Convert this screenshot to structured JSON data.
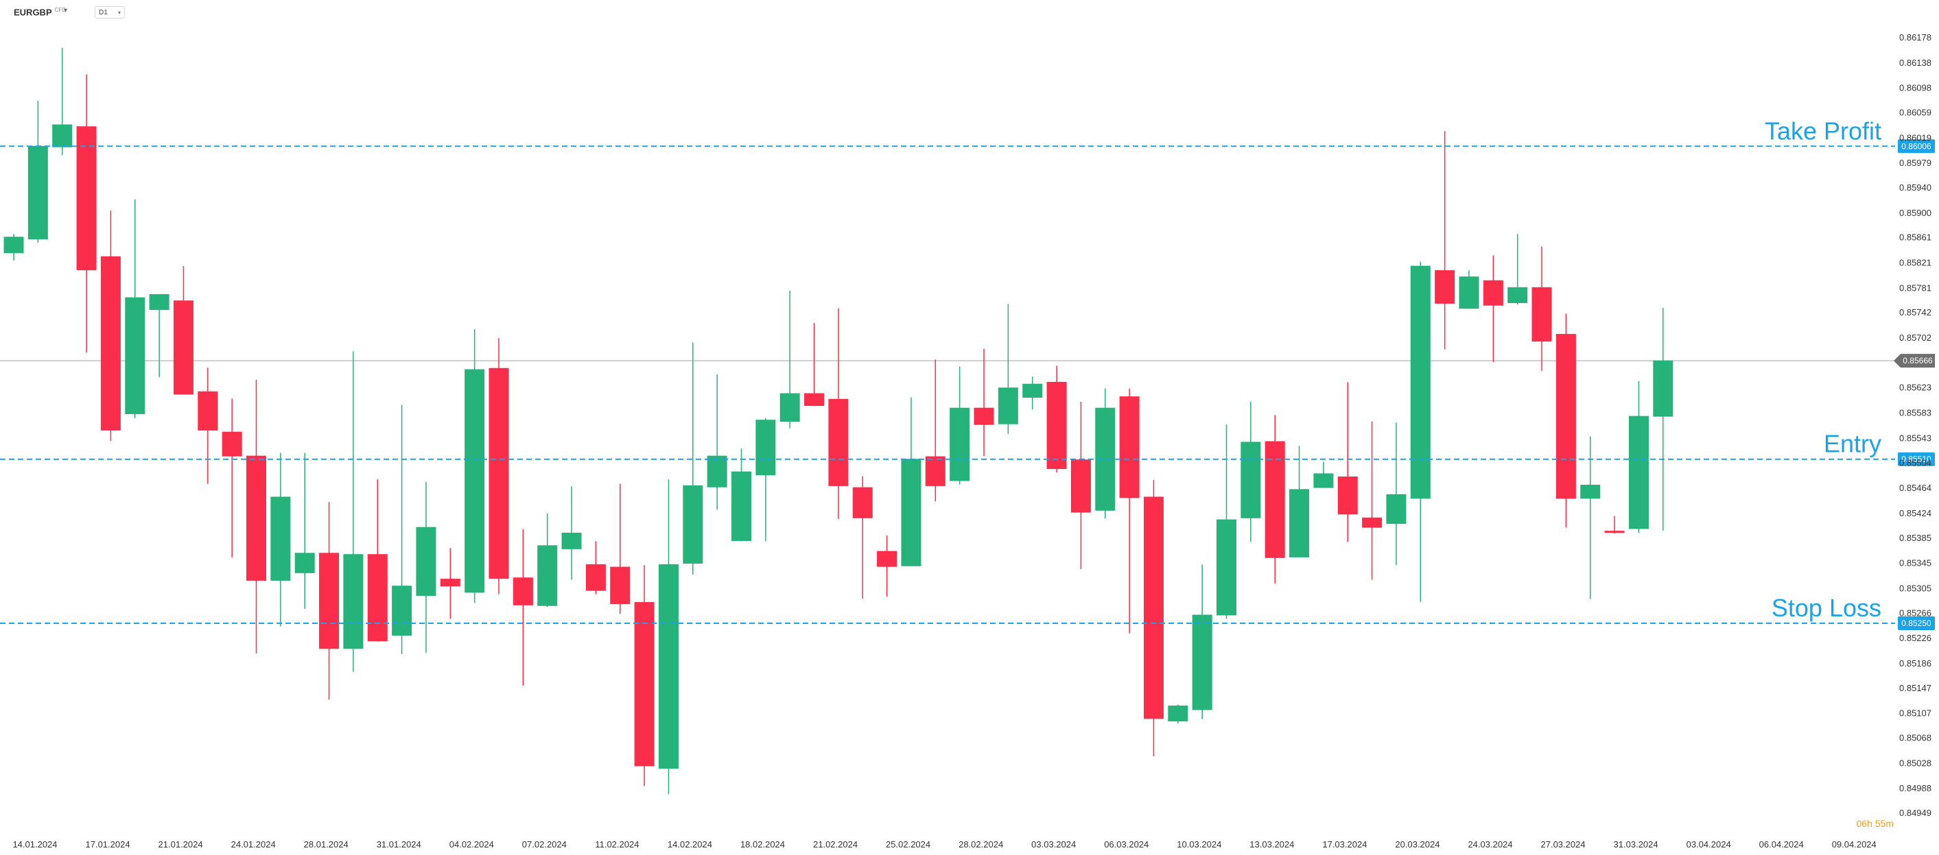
{
  "toolbar": {
    "symbol": "EURGBP",
    "symbol_suffix": "CFD",
    "timeframe": "D1"
  },
  "chart_data": {
    "type": "candlestick",
    "timeframe": "D1",
    "ylim": [
      0.84949,
      0.86178
    ],
    "y_ticks": [
      "0.86178",
      "0.86138",
      "0.86098",
      "0.86059",
      "0.86019",
      "0.85979",
      "0.85940",
      "0.85900",
      "0.85861",
      "0.85821",
      "0.85781",
      "0.85742",
      "0.85702",
      "0.85623",
      "0.85583",
      "0.85543",
      "0.85504",
      "0.85464",
      "0.85424",
      "0.85385",
      "0.85345",
      "0.85305",
      "0.85266",
      "0.85226",
      "0.85186",
      "0.85147",
      "0.85107",
      "0.85068",
      "0.85028",
      "0.84988",
      "0.84949"
    ],
    "x_labels": [
      {
        "i": 0,
        "t": "14.01.2024"
      },
      {
        "i": 3,
        "t": "17.01.2024"
      },
      {
        "i": 6,
        "t": "21.01.2024"
      },
      {
        "i": 9,
        "t": "24.01.2024"
      },
      {
        "i": 12,
        "t": "28.01.2024"
      },
      {
        "i": 15,
        "t": "31.01.2024"
      },
      {
        "i": 18,
        "t": "04.02.2024"
      },
      {
        "i": 21,
        "t": "07.02.2024"
      },
      {
        "i": 24,
        "t": "11.02.2024"
      },
      {
        "i": 27,
        "t": "14.02.2024"
      },
      {
        "i": 30,
        "t": "18.02.2024"
      },
      {
        "i": 33,
        "t": "21.02.2024"
      },
      {
        "i": 36,
        "t": "25.02.2024"
      },
      {
        "i": 39,
        "t": "28.02.2024"
      },
      {
        "i": 42,
        "t": "03.03.2024"
      },
      {
        "i": 45,
        "t": "06.03.2024"
      },
      {
        "i": 48,
        "t": "10.03.2024"
      },
      {
        "i": 51,
        "t": "13.03.2024"
      },
      {
        "i": 54,
        "t": "17.03.2024"
      },
      {
        "i": 57,
        "t": "20.03.2024"
      },
      {
        "i": 60,
        "t": "24.03.2024"
      },
      {
        "i": 63,
        "t": "27.03.2024"
      },
      {
        "i": 66,
        "t": "31.03.2024"
      },
      {
        "i": 69,
        "t": "03.04.2024"
      },
      {
        "i": 72,
        "t": "06.04.2024"
      },
      {
        "i": 75,
        "t": "09.04.2024"
      }
    ],
    "candles": [
      {
        "o": 0.85837,
        "h": 0.85867,
        "l": 0.85825,
        "c": 0.85862
      },
      {
        "o": 0.85859,
        "h": 0.86078,
        "l": 0.85853,
        "c": 0.86006
      },
      {
        "o": 0.86005,
        "h": 0.86162,
        "l": 0.85992,
        "c": 0.8604
      },
      {
        "o": 0.86037,
        "h": 0.8612,
        "l": 0.85679,
        "c": 0.8581
      },
      {
        "o": 0.85831,
        "h": 0.85904,
        "l": 0.85539,
        "c": 0.85556
      },
      {
        "o": 0.85582,
        "h": 0.85922,
        "l": 0.85575,
        "c": 0.85766
      },
      {
        "o": 0.85747,
        "h": 0.85768,
        "l": 0.8564,
        "c": 0.85771
      },
      {
        "o": 0.85761,
        "h": 0.85816,
        "l": 0.85616,
        "c": 0.85613
      },
      {
        "o": 0.85617,
        "h": 0.85655,
        "l": 0.85471,
        "c": 0.85556
      },
      {
        "o": 0.85553,
        "h": 0.85606,
        "l": 0.85354,
        "c": 0.85515
      },
      {
        "o": 0.85515,
        "h": 0.85636,
        "l": 0.85202,
        "c": 0.85318
      },
      {
        "o": 0.85318,
        "h": 0.8552,
        "l": 0.85245,
        "c": 0.8545
      },
      {
        "o": 0.8533,
        "h": 0.8552,
        "l": 0.85273,
        "c": 0.85361
      },
      {
        "o": 0.85361,
        "h": 0.85442,
        "l": 0.85129,
        "c": 0.8521
      },
      {
        "o": 0.8521,
        "h": 0.85681,
        "l": 0.85173,
        "c": 0.85359
      },
      {
        "o": 0.85359,
        "h": 0.85478,
        "l": 0.85221,
        "c": 0.85222
      },
      {
        "o": 0.85231,
        "h": 0.85596,
        "l": 0.85201,
        "c": 0.85309
      },
      {
        "o": 0.85294,
        "h": 0.85474,
        "l": 0.85203,
        "c": 0.85402
      },
      {
        "o": 0.8532,
        "h": 0.85369,
        "l": 0.85257,
        "c": 0.85309
      },
      {
        "o": 0.85299,
        "h": 0.85716,
        "l": 0.85282,
        "c": 0.85652
      },
      {
        "o": 0.85654,
        "h": 0.85702,
        "l": 0.85296,
        "c": 0.85321
      },
      {
        "o": 0.85322,
        "h": 0.85399,
        "l": 0.85151,
        "c": 0.85279
      },
      {
        "o": 0.85278,
        "h": 0.85424,
        "l": 0.85276,
        "c": 0.85373
      },
      {
        "o": 0.85368,
        "h": 0.85467,
        "l": 0.85319,
        "c": 0.85393
      },
      {
        "o": 0.85343,
        "h": 0.8538,
        "l": 0.85296,
        "c": 0.85302
      },
      {
        "o": 0.85339,
        "h": 0.85471,
        "l": 0.85265,
        "c": 0.85281
      },
      {
        "o": 0.85283,
        "h": 0.85342,
        "l": 0.84992,
        "c": 0.85024
      },
      {
        "o": 0.8502,
        "h": 0.85478,
        "l": 0.84979,
        "c": 0.85343
      },
      {
        "o": 0.85345,
        "h": 0.85695,
        "l": 0.85327,
        "c": 0.85468
      },
      {
        "o": 0.85466,
        "h": 0.85644,
        "l": 0.8543,
        "c": 0.85515
      },
      {
        "o": 0.85381,
        "h": 0.85527,
        "l": 0.8538,
        "c": 0.8549
      },
      {
        "o": 0.85485,
        "h": 0.85575,
        "l": 0.8538,
        "c": 0.85572
      },
      {
        "o": 0.8557,
        "h": 0.85777,
        "l": 0.85559,
        "c": 0.85614
      },
      {
        "o": 0.85614,
        "h": 0.85726,
        "l": 0.85594,
        "c": 0.85595
      },
      {
        "o": 0.85605,
        "h": 0.85749,
        "l": 0.85415,
        "c": 0.85468
      },
      {
        "o": 0.85465,
        "h": 0.85483,
        "l": 0.85289,
        "c": 0.85417
      },
      {
        "o": 0.85364,
        "h": 0.85389,
        "l": 0.85292,
        "c": 0.8534
      },
      {
        "o": 0.85341,
        "h": 0.85608,
        "l": 0.85341,
        "c": 0.8551
      },
      {
        "o": 0.85514,
        "h": 0.85668,
        "l": 0.85443,
        "c": 0.85468
      },
      {
        "o": 0.85476,
        "h": 0.85657,
        "l": 0.8547,
        "c": 0.85591
      },
      {
        "o": 0.85591,
        "h": 0.85685,
        "l": 0.85515,
        "c": 0.85565
      },
      {
        "o": 0.85566,
        "h": 0.85756,
        "l": 0.8555,
        "c": 0.85623
      },
      {
        "o": 0.85608,
        "h": 0.85641,
        "l": 0.85589,
        "c": 0.85629
      },
      {
        "o": 0.85632,
        "h": 0.85658,
        "l": 0.85489,
        "c": 0.85495
      },
      {
        "o": 0.85509,
        "h": 0.85601,
        "l": 0.85336,
        "c": 0.85426
      },
      {
        "o": 0.85429,
        "h": 0.85622,
        "l": 0.85416,
        "c": 0.85591
      },
      {
        "o": 0.85609,
        "h": 0.85622,
        "l": 0.85234,
        "c": 0.85449
      },
      {
        "o": 0.8545,
        "h": 0.85477,
        "l": 0.85039,
        "c": 0.85099
      },
      {
        "o": 0.85095,
        "h": 0.85121,
        "l": 0.85091,
        "c": 0.85119
      },
      {
        "o": 0.85113,
        "h": 0.85343,
        "l": 0.85098,
        "c": 0.85263
      },
      {
        "o": 0.85263,
        "h": 0.85565,
        "l": 0.85257,
        "c": 0.85414
      },
      {
        "o": 0.85417,
        "h": 0.85601,
        "l": 0.85379,
        "c": 0.85537
      },
      {
        "o": 0.85538,
        "h": 0.8558,
        "l": 0.85313,
        "c": 0.85354
      },
      {
        "o": 0.85355,
        "h": 0.85531,
        "l": 0.85355,
        "c": 0.85462
      },
      {
        "o": 0.85465,
        "h": 0.85506,
        "l": 0.85465,
        "c": 0.85487
      },
      {
        "o": 0.85482,
        "h": 0.85632,
        "l": 0.85379,
        "c": 0.85423
      },
      {
        "o": 0.85417,
        "h": 0.8557,
        "l": 0.85319,
        "c": 0.85402
      },
      {
        "o": 0.85408,
        "h": 0.85568,
        "l": 0.85342,
        "c": 0.85454
      },
      {
        "o": 0.85448,
        "h": 0.85823,
        "l": 0.85284,
        "c": 0.85816
      },
      {
        "o": 0.85809,
        "h": 0.8603,
        "l": 0.85684,
        "c": 0.85757
      },
      {
        "o": 0.85749,
        "h": 0.85809,
        "l": 0.85752,
        "c": 0.85799
      },
      {
        "o": 0.85793,
        "h": 0.85833,
        "l": 0.85664,
        "c": 0.85754
      },
      {
        "o": 0.85758,
        "h": 0.85867,
        "l": 0.85755,
        "c": 0.85782
      },
      {
        "o": 0.85782,
        "h": 0.85847,
        "l": 0.8565,
        "c": 0.85697
      },
      {
        "o": 0.85708,
        "h": 0.85741,
        "l": 0.85402,
        "c": 0.85448
      },
      {
        "o": 0.85448,
        "h": 0.85546,
        "l": 0.85288,
        "c": 0.85469
      },
      {
        "o": 0.85396,
        "h": 0.8542,
        "l": 0.85392,
        "c": 0.85394
      },
      {
        "o": 0.854,
        "h": 0.85634,
        "l": 0.85393,
        "c": 0.85578
      },
      {
        "o": 0.85578,
        "h": 0.8575,
        "l": 0.85397,
        "c": 0.85666
      }
    ],
    "levels": [
      {
        "name": "Take Profit",
        "value": 0.86006,
        "label": "0.86006"
      },
      {
        "name": "Entry",
        "value": 0.8551,
        "label": "0.85510"
      },
      {
        "name": "Stop Loss",
        "value": 0.8525,
        "label": "0.85250"
      }
    ],
    "current_price": {
      "value": 0.85666,
      "label": "0.85666"
    },
    "countdown": "06h 55m",
    "colors": {
      "bull": "#26b37b",
      "bear": "#fa2e4a",
      "level": "#1aa3e8",
      "price_line": "#a0a0a0",
      "countdown": "#f0a020"
    }
  }
}
